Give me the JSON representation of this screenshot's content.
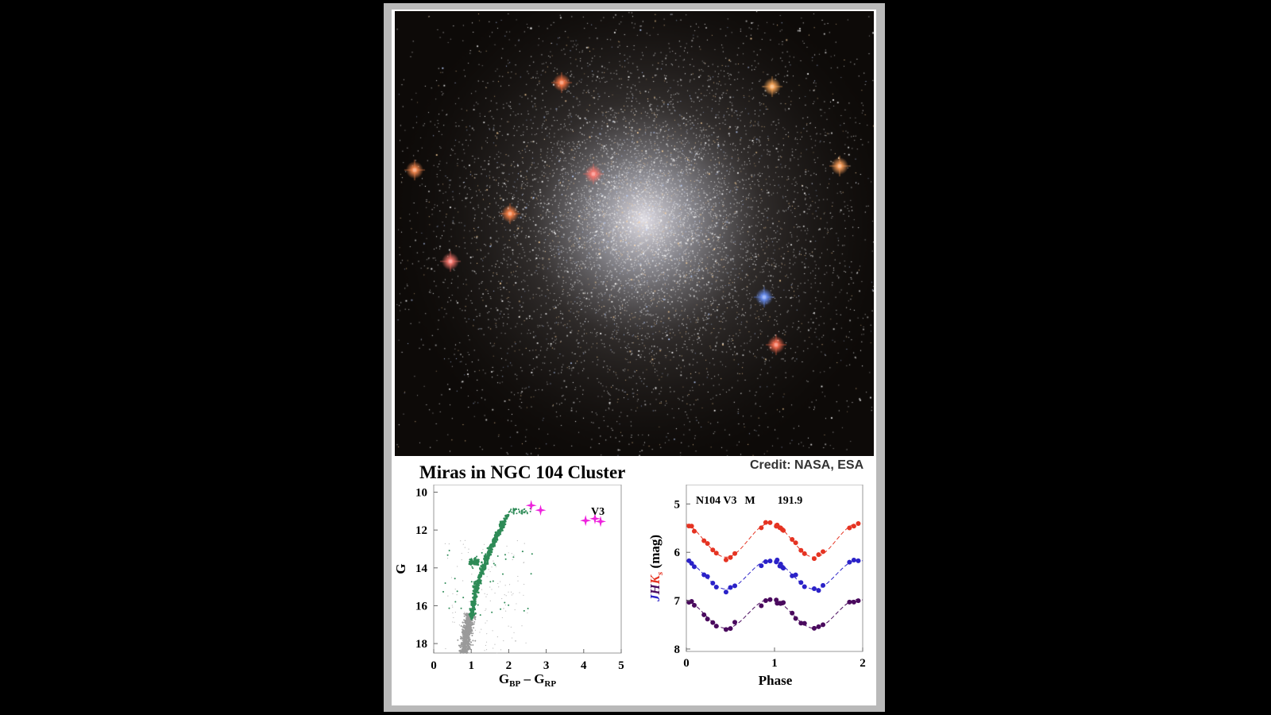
{
  "title": "Miras in NGC 104 Cluster",
  "credit": "Credit: NASA, ESA",
  "image": {
    "description_icon": "globular-cluster-photo"
  },
  "chart_data": [
    {
      "type": "scatter",
      "xlabel_main": "G",
      "xlabel_sub1": "BP",
      "xlabel_mid": " – G",
      "xlabel_sub2": "RP",
      "ylabel": "G",
      "xlim": [
        0,
        5
      ],
      "ylim": [
        18.5,
        9.6
      ],
      "y_inverted": true,
      "xticks": [
        0,
        1,
        2,
        3,
        4,
        5
      ],
      "yticks": [
        10,
        12,
        14,
        16,
        18
      ],
      "annotation": "V3",
      "colors": {
        "member": "#2e8b57",
        "field": "#9a9a9a",
        "mira": "#ee22dd"
      },
      "mira_points": [
        {
          "x": 2.6,
          "y": 10.7
        },
        {
          "x": 2.85,
          "y": 10.95
        },
        {
          "x": 4.05,
          "y": 11.5
        },
        {
          "x": 4.3,
          "y": 11.4
        },
        {
          "x": 4.45,
          "y": 11.55
        }
      ]
    },
    {
      "type": "scatter",
      "xlabel": "Phase",
      "ylabel_J": "J",
      "ylabel_H": "H",
      "ylabel_K": "K",
      "ylabel_sub": "s",
      "ylabel_unit": " (mag)",
      "xlim": [
        0,
        2
      ],
      "ylim": [
        8.05,
        4.6
      ],
      "y_inverted": true,
      "xticks": [
        0,
        1,
        2
      ],
      "yticks": [
        5,
        6,
        7,
        8
      ],
      "annotation_name": "N104 V3",
      "annotation_type": "M",
      "annotation_period": "191.9",
      "series": [
        {
          "band": "J",
          "color": "#4a0a5e",
          "mean": 7.27,
          "amp": 0.3
        },
        {
          "band": "H",
          "color": "#2b22c8",
          "mean": 6.46,
          "amp": 0.3
        },
        {
          "band": "Ks",
          "color": "#e53322",
          "mean": 5.75,
          "amp": 0.35
        }
      ]
    }
  ]
}
